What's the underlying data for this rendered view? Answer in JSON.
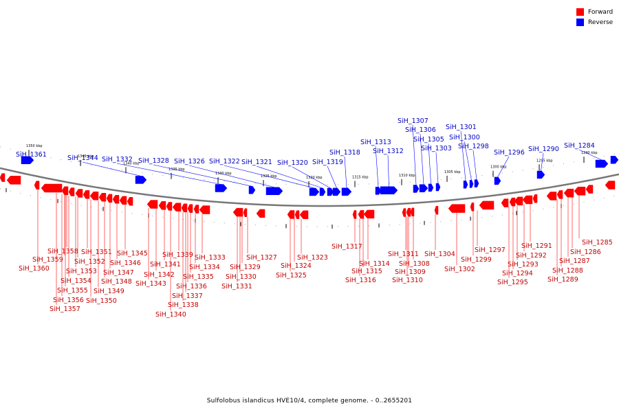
{
  "legend": [
    {
      "label": "Forward",
      "color": "#ff0000"
    },
    {
      "label": "Reverse",
      "color": "#0000ff"
    }
  ],
  "caption": "Sulfolobus islandicus HVE10/4, complete genome. - 0..2655201",
  "colors": {
    "forward": "#ff0000",
    "reverse": "#0000ff",
    "backbone": "#777777",
    "label_forward": "#c00000",
    "label_reverse": "#0000c0"
  },
  "diagram": {
    "tick_labels": [
      "1350 kbp",
      "1345 kbp",
      "1340 kbp",
      "1335 kbp",
      "1330 kbp",
      "1325 kbp",
      "1320 kbp",
      "1315 kbp",
      "1310 kbp",
      "1305 kbp",
      "1300 kbp",
      "1295 kbp",
      "1290 kbp"
    ],
    "reverse_genes": [
      "SiH_1361",
      "SiH_1344",
      "SiH_1332",
      "SiH_1328",
      "SiH_1326",
      "SiH_1322",
      "SiH_1321",
      "SiH_1320",
      "SiH_1319",
      "SiH_1318",
      "SiH_1313",
      "SiH_1312",
      "SiH_1307",
      "SiH_1306",
      "SiH_1305",
      "SiH_1303",
      "SiH_1301",
      "SiH_1300",
      "SiH_1298",
      "SiH_1296",
      "SiH_1290",
      "SiH_1284"
    ],
    "forward_genes": [
      "SiH_1358",
      "SiH_1359",
      "SiH_1360",
      "SiH_1351",
      "SiH_1352",
      "SiH_1353",
      "SiH_1354",
      "SiH_1355",
      "SiH_1356",
      "SiH_1357",
      "SiH_1345",
      "SiH_1346",
      "SiH_1347",
      "SiH_1348",
      "SiH_1349",
      "SiH_1350",
      "SiH_1339",
      "SiH_1341",
      "SiH_1342",
      "SiH_1343",
      "SiH_1333",
      "SiH_1334",
      "SiH_1335",
      "SiH_1336",
      "SiH_1337",
      "SiH_1338",
      "SiH_1340",
      "SiH_1327",
      "SiH_1329",
      "SiH_1330",
      "SiH_1331",
      "SiH_1323",
      "SiH_1324",
      "SiH_1325",
      "SiH_1317",
      "SiH_1314",
      "SiH_1315",
      "SiH_1316",
      "SiH_1311",
      "SiH_1308",
      "SiH_1309",
      "SiH_1310",
      "SiH_1304",
      "SiH_1297",
      "SiH_1299",
      "SiH_1302",
      "SiH_1291",
      "SiH_1292",
      "SiH_1293",
      "SiH_1294",
      "SiH_1295",
      "SiH_1285",
      "SiH_1286",
      "SiH_1287",
      "SiH_1288",
      "SiH_1289"
    ]
  }
}
